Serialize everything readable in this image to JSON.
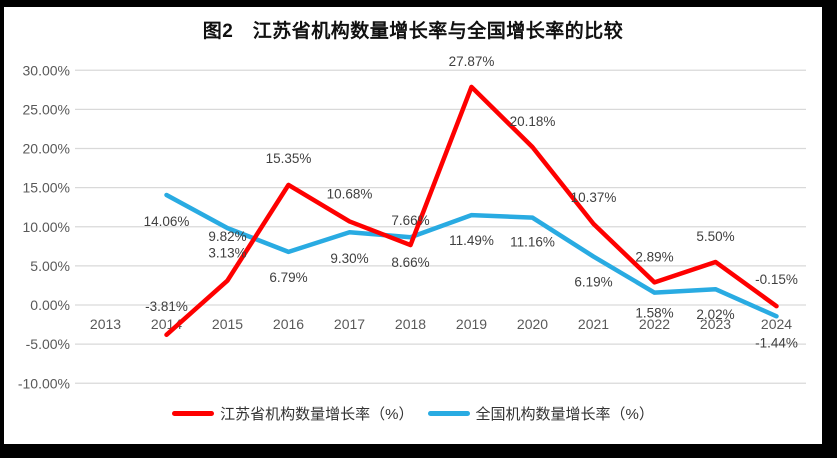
{
  "frame": {
    "border_color": "#000000",
    "canvas_background": "#ffffff"
  },
  "header": {
    "title": "图2　江苏省机构数量增长率与全国增长率的比较"
  },
  "colors": {
    "jiangsu_red": "#fe0000",
    "national_blue": "#29abe2",
    "gridline": "#d9d9d9",
    "tick_text": "#595959",
    "data_label_text": "#404040"
  },
  "chart_data": {
    "type": "line",
    "title": "图2　江苏省机构数量增长率与全国增长率的比较",
    "categories": [
      "2013",
      "2014",
      "2015",
      "2016",
      "2017",
      "2018",
      "2019",
      "2020",
      "2021",
      "2022",
      "2023",
      "2024"
    ],
    "series": [
      {
        "name": "江苏省机构数量增长率（%）",
        "color": "#fe0000",
        "values": [
          null,
          -3.81,
          3.13,
          15.35,
          10.68,
          7.66,
          27.87,
          20.18,
          10.37,
          2.89,
          5.5,
          -0.15
        ],
        "label_dy": [
          null,
          -29,
          -28,
          -27,
          -28,
          -25,
          -26,
          -26,
          -27,
          -26,
          -26,
          -27
        ]
      },
      {
        "name": "全国机构数量增长率（%）",
        "color": "#29abe2",
        "values": [
          null,
          14.06,
          9.82,
          6.79,
          9.3,
          8.66,
          11.49,
          11.16,
          6.19,
          1.58,
          2.02,
          -1.44
        ],
        "label_dy": [
          null,
          26,
          8,
          25,
          26,
          25,
          25,
          24,
          25,
          20,
          25,
          26
        ]
      }
    ],
    "ylim": [
      -10,
      30
    ],
    "ytick_step": 5,
    "ytick_labels": [
      "30.00%",
      "25.00%",
      "20.00%",
      "15.00%",
      "10.00%",
      "5.00%",
      "0.00%",
      "-5.00%",
      "-10.00%"
    ],
    "grid": true,
    "data_labels": true,
    "legend_position": "bottom"
  }
}
